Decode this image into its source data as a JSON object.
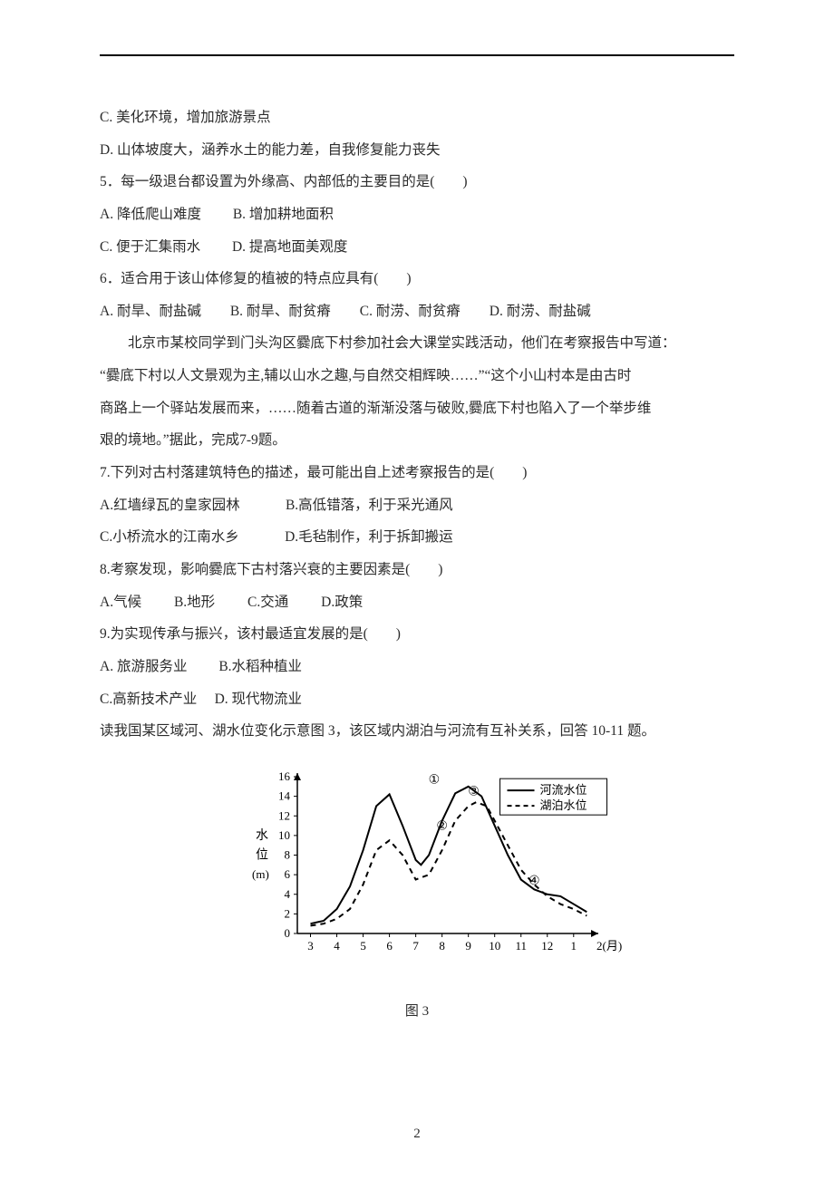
{
  "page_number": "2",
  "lines": {
    "c": "C. 美化环境，增加旅游景点",
    "d": "D. 山体坡度大，涵养水土的能力差，自我修复能力丧失",
    "q5": "5．每一级退台都设置为外缘高、内部低的主要目的是(　　)",
    "q5a": "A. 降低爬山难度",
    "q5b": "B. 增加耕地面积",
    "q5c": "C. 便于汇集雨水",
    "q5d": "D. 提高地面美观度",
    "q6": "6．适合用于该山体修复的植被的特点应具有(　　)",
    "q6a": "A. 耐旱、耐盐碱",
    "q6b": "B. 耐旱、耐贫瘠",
    "q6c": "C. 耐涝、耐贫瘠",
    "q6d": "D. 耐涝、耐盐碱",
    "p1": "北京市某校同学到门头沟区爨底下村参加社会大课堂实践活动，他们在考察报告中写道：",
    "p2": "“爨底下村以人文景观为主,辅以山水之趣,与自然交相辉映……”“这个小山村本是由古时",
    "p3": "商路上一个驿站发展而来，……随着古道的渐渐没落与破败,爨底下村也陷入了一个举步维",
    "p4": "艰的境地。”据此，完成7-9题。",
    "q7": "7.下列对古村落建筑特色的描述，最可能出自上述考察报告的是(　　)",
    "q7a": "A.红墙绿瓦的皇家园林",
    "q7b": "B.高低错落，利于采光通风",
    "q7c": "C.小桥流水的江南水乡",
    "q7d": "D.毛毡制作，利于拆卸搬运",
    "q8": "8.考察发现，影响爨底下古村落兴衰的主要因素是(　　)",
    "q8a": "A.气候",
    "q8b": "B.地形",
    "q8c": "C.交通",
    "q8d": "D.政策",
    "q9": "9.为实现传承与振兴，该村最适宜发展的是(　　)",
    "q9a": "A. 旅游服务业",
    "q9b": "B.水稻种植业",
    "q9c": "C.高新技术产业",
    "q9d": "D. 现代物流业",
    "intro3": "读我国某区域河、湖水位变化示意图 3，该区域内湖泊与河流有互补关系，回答 10-11 题。"
  },
  "chart": {
    "caption": "图 3",
    "type": "line",
    "background_color": "#ffffff",
    "axis_color": "#000000",
    "axis_width": 1.5,
    "grid": false,
    "font_size": 13,
    "y_label_top": "水",
    "y_label_bottom": "位",
    "y_unit": "(m)",
    "x_label": "2(月)",
    "x_ticks": [
      3,
      4,
      5,
      6,
      7,
      8,
      9,
      10,
      11,
      12,
      1
    ],
    "y_ticks": [
      0,
      2,
      4,
      6,
      8,
      10,
      12,
      14,
      16
    ],
    "xlim": [
      2.5,
      13.8
    ],
    "ylim": [
      0,
      16
    ],
    "legend": {
      "river": "河流水位",
      "lake": "湖泊水位",
      "box_border": "#000000"
    },
    "series": {
      "river": {
        "style": "solid",
        "color": "#000000",
        "width": 2,
        "points": [
          [
            3,
            1.0
          ],
          [
            3.5,
            1.3
          ],
          [
            4,
            2.5
          ],
          [
            4.5,
            4.8
          ],
          [
            5,
            8.5
          ],
          [
            5.5,
            13.0
          ],
          [
            6,
            14.2
          ],
          [
            6.5,
            11.0
          ],
          [
            7,
            7.5
          ],
          [
            7.2,
            7.0
          ],
          [
            7.5,
            8.0
          ],
          [
            8,
            11.5
          ],
          [
            8.5,
            14.3
          ],
          [
            9,
            15.0
          ],
          [
            9.5,
            14.0
          ],
          [
            10,
            11.0
          ],
          [
            10.5,
            8.0
          ],
          [
            11,
            5.5
          ],
          [
            11.5,
            4.5
          ],
          [
            12,
            4.0
          ],
          [
            12.5,
            3.8
          ],
          [
            13,
            3.0
          ],
          [
            13.5,
            2.2
          ]
        ]
      },
      "lake": {
        "style": "dashed",
        "color": "#000000",
        "width": 2,
        "points": [
          [
            3,
            0.8
          ],
          [
            3.5,
            1.0
          ],
          [
            4,
            1.5
          ],
          [
            4.5,
            2.5
          ],
          [
            5,
            5.0
          ],
          [
            5.5,
            8.5
          ],
          [
            6,
            9.5
          ],
          [
            6.5,
            8.0
          ],
          [
            7,
            5.5
          ],
          [
            7.5,
            6.0
          ],
          [
            8,
            8.5
          ],
          [
            8.5,
            11.5
          ],
          [
            9,
            13.0
          ],
          [
            9.3,
            13.4
          ],
          [
            9.7,
            13.0
          ],
          [
            10,
            11.5
          ],
          [
            10.5,
            9.0
          ],
          [
            11,
            6.5
          ],
          [
            11.5,
            5.0
          ],
          [
            12,
            3.8
          ],
          [
            12.5,
            3.0
          ],
          [
            13,
            2.5
          ],
          [
            13.5,
            1.8
          ]
        ]
      }
    },
    "markers": [
      {
        "label": "①",
        "x": 7.7,
        "y": 15.3
      },
      {
        "label": "②",
        "x": 8.0,
        "y": 10.6
      },
      {
        "label": "③",
        "x": 9.2,
        "y": 14.1
      },
      {
        "label": "④",
        "x": 11.5,
        "y": 5.0
      }
    ]
  }
}
